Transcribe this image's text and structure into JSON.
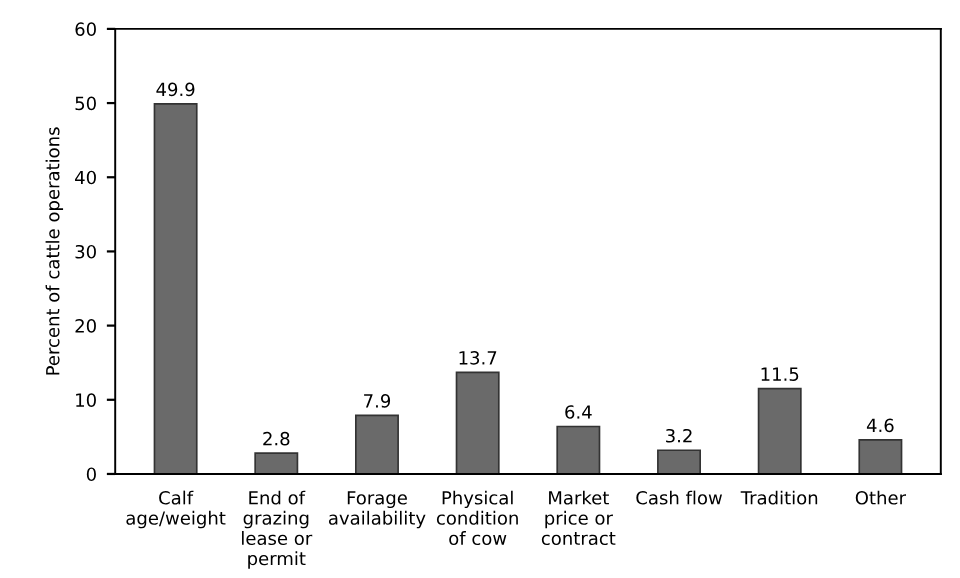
{
  "chart_data": {
    "type": "bar",
    "ylabel": "Percent of cattle operations",
    "categories": [
      "Calf\nage/weight",
      "End of\ngrazing\nlease or\npermit",
      "Forage\navailability",
      "Physical\ncondition\nof cow",
      "Market\nprice or\ncontract",
      "Cash flow",
      "Tradition",
      "Other"
    ],
    "values": [
      49.9,
      2.8,
      7.9,
      13.7,
      6.4,
      3.2,
      11.5,
      4.6
    ],
    "color": "#6a6a6a",
    "ylim": [
      0,
      60
    ],
    "yticks": [
      0,
      10,
      20,
      30,
      40,
      50,
      60
    ],
    "data_labels": true,
    "grid": false,
    "legend": false
  }
}
